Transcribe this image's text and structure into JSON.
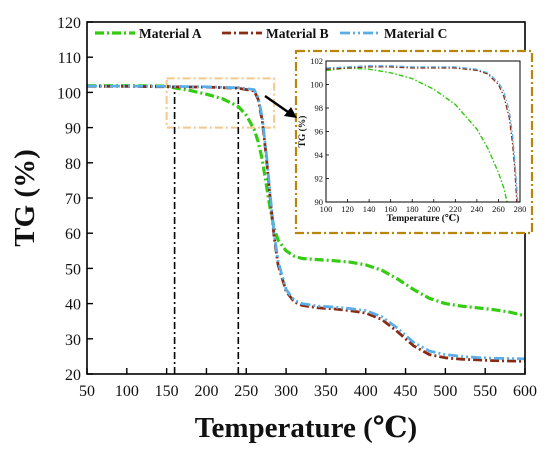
{
  "colors": {
    "material_a": "#33cc11",
    "material_b": "#8b2a12",
    "material_c": "#5aaee8",
    "inset_frame": "#b8860b",
    "zoom_box": "#f2c88c",
    "axis": "#000000"
  },
  "chart_data": [
    {
      "type": "line",
      "title": "",
      "xlabel": "Temperature (℃)",
      "ylabel": "TG (%)",
      "xlim": [
        50,
        600
      ],
      "ylim": [
        20,
        120
      ],
      "x_ticks": [
        50,
        100,
        150,
        200,
        250,
        300,
        350,
        400,
        450,
        500,
        550,
        600
      ],
      "y_ticks": [
        20,
        30,
        40,
        50,
        60,
        70,
        80,
        90,
        100,
        110,
        120
      ],
      "legend_position": "top",
      "grid": false,
      "series": [
        {
          "name": "Material A",
          "x": [
            50,
            100,
            150,
            160,
            180,
            200,
            220,
            240,
            250,
            260,
            265,
            270,
            275,
            280,
            285,
            290,
            300,
            310,
            320,
            340,
            360,
            380,
            400,
            420,
            440,
            460,
            480,
            500,
            520,
            540,
            560,
            580,
            600
          ],
          "y": [
            101.9,
            101.9,
            101.8,
            101.3,
            100.5,
            99.5,
            98.2,
            96.0,
            93.5,
            89.5,
            86.0,
            81.0,
            74.0,
            67.0,
            61.5,
            58.0,
            55.0,
            53.5,
            52.8,
            52.5,
            52.2,
            51.8,
            51.0,
            49.5,
            47.0,
            44.0,
            41.5,
            40.0,
            39.3,
            38.8,
            38.3,
            37.6,
            36.5
          ]
        },
        {
          "name": "Material B",
          "x": [
            50,
            100,
            150,
            200,
            240,
            260,
            265,
            270,
            275,
            280,
            285,
            290,
            300,
            310,
            320,
            340,
            360,
            380,
            400,
            420,
            440,
            460,
            480,
            500,
            520,
            540,
            560,
            580,
            600
          ],
          "y": [
            101.7,
            101.7,
            101.6,
            101.5,
            101.2,
            100.4,
            98.0,
            92.0,
            82.0,
            70.0,
            59.0,
            51.0,
            43.5,
            40.5,
            39.5,
            38.8,
            38.5,
            38.0,
            37.3,
            35.5,
            32.0,
            28.0,
            25.5,
            24.6,
            24.2,
            24.0,
            23.8,
            23.7,
            23.6
          ]
        },
        {
          "name": "Material C",
          "x": [
            50,
            100,
            150,
            200,
            240,
            260,
            265,
            270,
            275,
            280,
            285,
            290,
            300,
            310,
            320,
            340,
            360,
            380,
            400,
            420,
            440,
            460,
            480,
            500,
            520,
            540,
            560,
            580,
            600
          ],
          "y": [
            101.8,
            101.8,
            101.7,
            101.6,
            101.3,
            100.8,
            98.5,
            93.0,
            83.0,
            71.0,
            60.0,
            52.0,
            44.0,
            41.0,
            40.0,
            39.3,
            39.0,
            38.6,
            38.0,
            36.3,
            33.0,
            29.0,
            26.5,
            25.5,
            25.0,
            24.7,
            24.5,
            24.4,
            24.3
          ]
        }
      ],
      "vertical_markers": [
        160,
        240
      ],
      "zoom_region": {
        "x": [
          150,
          285
        ],
        "y": [
          90,
          104
        ]
      }
    },
    {
      "type": "line",
      "title": "",
      "xlabel": "Temperature (℃)",
      "ylabel": "TG (%)",
      "xlim": [
        100,
        280
      ],
      "ylim": [
        90,
        102
      ],
      "x_ticks": [
        100,
        120,
        140,
        160,
        180,
        200,
        220,
        240,
        260,
        280
      ],
      "y_ticks": [
        90,
        92,
        94,
        96,
        98,
        100,
        102
      ],
      "grid": false,
      "series": [
        {
          "name": "Material A",
          "x": [
            100,
            120,
            140,
            160,
            180,
            200,
            220,
            240,
            250,
            260,
            265,
            268
          ],
          "y": [
            101.2,
            101.4,
            101.3,
            101.0,
            100.5,
            99.6,
            98.3,
            96.2,
            94.6,
            92.5,
            91.2,
            90.0
          ]
        },
        {
          "name": "Material B",
          "x": [
            100,
            120,
            140,
            160,
            180,
            200,
            220,
            240,
            250,
            260,
            265,
            270,
            273,
            275,
            277
          ],
          "y": [
            101.3,
            101.4,
            101.5,
            101.5,
            101.4,
            101.4,
            101.4,
            101.2,
            100.9,
            100.0,
            99.0,
            97.2,
            95.0,
            93.0,
            90.0
          ]
        },
        {
          "name": "Material C",
          "x": [
            100,
            120,
            140,
            160,
            180,
            200,
            220,
            240,
            250,
            260,
            265,
            270,
            273,
            275,
            278
          ],
          "y": [
            101.4,
            101.5,
            101.6,
            101.6,
            101.5,
            101.5,
            101.5,
            101.3,
            101.0,
            100.2,
            99.4,
            97.8,
            95.8,
            93.8,
            90.0
          ]
        }
      ]
    }
  ]
}
